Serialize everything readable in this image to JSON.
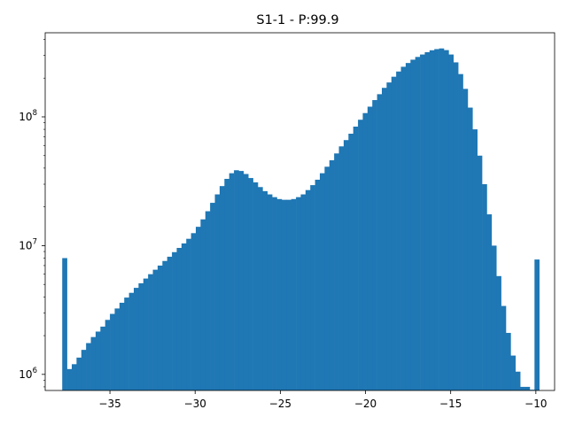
{
  "chart_data": {
    "type": "bar",
    "title": "S1-1 - P:99.9",
    "xlabel": "",
    "ylabel": "",
    "y_scale": "log",
    "xlim": [
      -38.8,
      -8.9
    ],
    "ylim": [
      750000,
      450000000
    ],
    "bar_color": "#1f77b4",
    "grid": false,
    "x_ticks": [
      {
        "value": -35,
        "label": "−35"
      },
      {
        "value": -30,
        "label": "−30"
      },
      {
        "value": -25,
        "label": "−25"
      },
      {
        "value": -20,
        "label": "−20"
      },
      {
        "value": -15,
        "label": "−15"
      },
      {
        "value": -10,
        "label": "−10"
      }
    ],
    "y_ticks": [
      {
        "value": 1000000,
        "base": "10",
        "exp": "6"
      },
      {
        "value": 10000000,
        "base": "10",
        "exp": "7"
      },
      {
        "value": 100000000,
        "base": "10",
        "exp": "8"
      }
    ],
    "bins": [
      [
        -37.8,
        8000000
      ],
      [
        -37.52,
        1100000
      ],
      [
        -37.24,
        1200000
      ],
      [
        -36.96,
        1350000
      ],
      [
        -36.68,
        1550000
      ],
      [
        -36.4,
        1750000
      ],
      [
        -36.12,
        1950000
      ],
      [
        -35.84,
        2150000
      ],
      [
        -35.56,
        2350000
      ],
      [
        -35.28,
        2650000
      ],
      [
        -35.0,
        2950000
      ],
      [
        -34.72,
        3250000
      ],
      [
        -34.44,
        3600000
      ],
      [
        -34.16,
        3950000
      ],
      [
        -33.88,
        4300000
      ],
      [
        -33.6,
        4700000
      ],
      [
        -33.32,
        5100000
      ],
      [
        -33.04,
        5550000
      ],
      [
        -32.76,
        6000000
      ],
      [
        -32.48,
        6500000
      ],
      [
        -32.2,
        7000000
      ],
      [
        -31.92,
        7600000
      ],
      [
        -31.64,
        8200000
      ],
      [
        -31.36,
        8900000
      ],
      [
        -31.08,
        9600000
      ],
      [
        -30.8,
        10400000
      ],
      [
        -30.52,
        11300000
      ],
      [
        -30.24,
        12500000
      ],
      [
        -29.96,
        14000000
      ],
      [
        -29.68,
        16000000
      ],
      [
        -29.4,
        18500000
      ],
      [
        -29.12,
        21500000
      ],
      [
        -28.84,
        25000000
      ],
      [
        -28.56,
        29000000
      ],
      [
        -28.28,
        33000000
      ],
      [
        -28.0,
        36500000
      ],
      [
        -27.72,
        38500000
      ],
      [
        -27.44,
        38000000
      ],
      [
        -27.16,
        36000000
      ],
      [
        -26.88,
        33500000
      ],
      [
        -26.6,
        31000000
      ],
      [
        -26.32,
        28500000
      ],
      [
        -26.04,
        26500000
      ],
      [
        -25.76,
        25000000
      ],
      [
        -25.48,
        23800000
      ],
      [
        -25.2,
        23000000
      ],
      [
        -24.92,
        22700000
      ],
      [
        -24.64,
        22700000
      ],
      [
        -24.36,
        23000000
      ],
      [
        -24.08,
        23800000
      ],
      [
        -23.8,
        25000000
      ],
      [
        -23.52,
        27000000
      ],
      [
        -23.24,
        29500000
      ],
      [
        -22.96,
        32500000
      ],
      [
        -22.68,
        36500000
      ],
      [
        -22.4,
        41000000
      ],
      [
        -22.12,
        46000000
      ],
      [
        -21.84,
        52000000
      ],
      [
        -21.56,
        59000000
      ],
      [
        -21.28,
        66000000
      ],
      [
        -21.0,
        74000000
      ],
      [
        -20.72,
        84000000
      ],
      [
        -20.44,
        95000000
      ],
      [
        -20.16,
        107000000
      ],
      [
        -19.88,
        120000000
      ],
      [
        -19.6,
        135000000
      ],
      [
        -19.32,
        150000000
      ],
      [
        -19.04,
        168000000
      ],
      [
        -18.76,
        185000000
      ],
      [
        -18.48,
        205000000
      ],
      [
        -18.2,
        225000000
      ],
      [
        -17.92,
        245000000
      ],
      [
        -17.64,
        262000000
      ],
      [
        -17.36,
        278000000
      ],
      [
        -17.08,
        292000000
      ],
      [
        -16.8,
        305000000
      ],
      [
        -16.52,
        318000000
      ],
      [
        -16.24,
        329000000
      ],
      [
        -15.96,
        336000000
      ],
      [
        -15.68,
        340000000
      ],
      [
        -15.4,
        330000000
      ],
      [
        -15.12,
        305000000
      ],
      [
        -14.84,
        265000000
      ],
      [
        -14.56,
        215000000
      ],
      [
        -14.28,
        165000000
      ],
      [
        -14.0,
        118000000
      ],
      [
        -13.72,
        80000000
      ],
      [
        -13.44,
        50000000
      ],
      [
        -13.16,
        30000000
      ],
      [
        -12.88,
        17500000
      ],
      [
        -12.6,
        10000000
      ],
      [
        -12.32,
        5800000
      ],
      [
        -12.04,
        3400000
      ],
      [
        -11.76,
        2100000
      ],
      [
        -11.48,
        1400000
      ],
      [
        -11.2,
        1050000
      ],
      [
        -10.92,
        800000
      ],
      [
        -10.64,
        800000
      ],
      [
        -10.36,
        760000
      ],
      [
        -10.08,
        7800000
      ]
    ],
    "bin_width": 0.28
  }
}
